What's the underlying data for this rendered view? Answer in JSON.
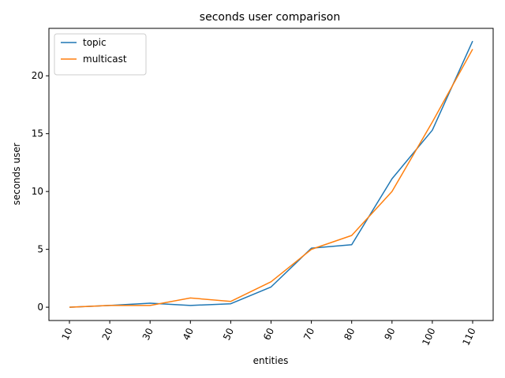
{
  "chart_data": {
    "type": "line",
    "title": "seconds user comparison",
    "xlabel": "entities",
    "ylabel": "seconds user",
    "categories": [
      "10",
      "20",
      "30",
      "40",
      "50",
      "60",
      "70",
      "80",
      "90",
      "100",
      "110"
    ],
    "yticks": [
      0,
      5,
      10,
      15,
      20
    ],
    "ylim": [
      -1.15,
      24.1
    ],
    "grid": false,
    "legend_position": "top-left",
    "series": [
      {
        "name": "topic",
        "color": "#1f77b4",
        "values": [
          0.0,
          0.15,
          0.35,
          0.15,
          0.3,
          1.75,
          5.1,
          5.4,
          11.1,
          15.3,
          23.0
        ]
      },
      {
        "name": "multicast",
        "color": "#ff7f0e",
        "values": [
          0.0,
          0.15,
          0.15,
          0.8,
          0.5,
          2.2,
          5.0,
          6.2,
          10.0,
          16.0,
          22.3
        ]
      }
    ]
  }
}
